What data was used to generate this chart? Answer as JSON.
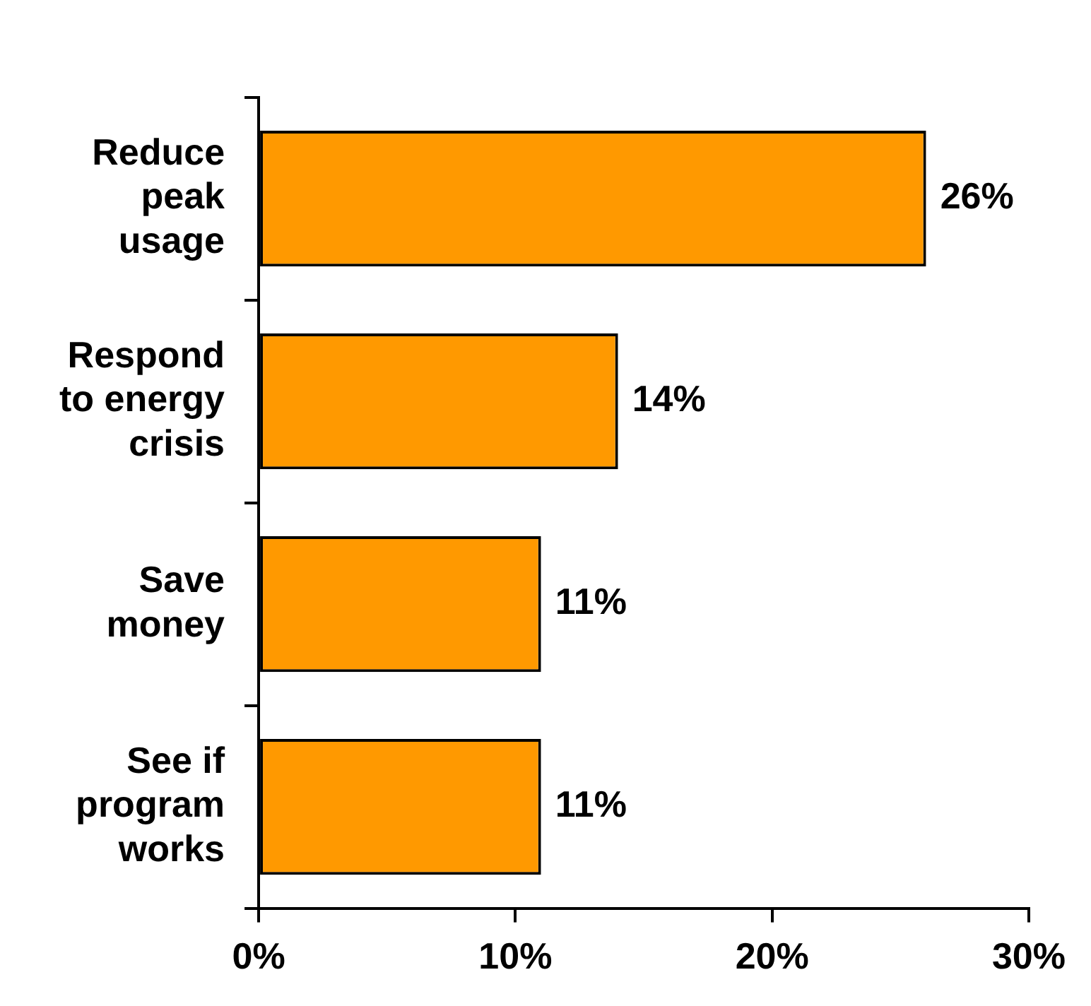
{
  "chart_data": {
    "type": "bar",
    "orientation": "horizontal",
    "categories": [
      "Reduce peak usage",
      "Respond to energy crisis",
      "Save money",
      "See if program works"
    ],
    "values": [
      26,
      14,
      11,
      11
    ],
    "color": "#ff9900",
    "value_labels": [
      "26%",
      "14%",
      "11%",
      "11%"
    ],
    "xlim": [
      0,
      30
    ],
    "xticks": [
      {
        "value": 0,
        "label": "0%"
      },
      {
        "value": 10,
        "label": "10%"
      },
      {
        "value": 20,
        "label": "20%"
      },
      {
        "value": 30,
        "label": "30%"
      }
    ],
    "grid": false,
    "legend": false
  }
}
